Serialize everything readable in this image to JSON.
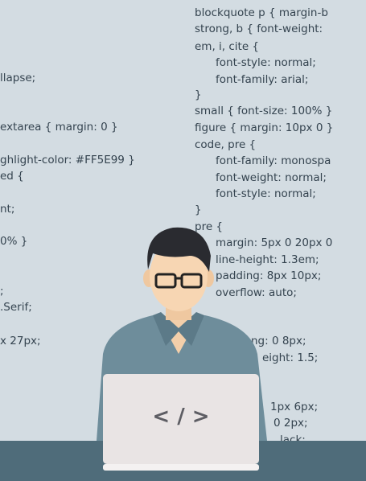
{
  "code_left": [
    "llapse;",
    "extarea { margin: 0 }",
    "ghlight-color: #FF5E99 }",
    "ed {",
    "nt;",
    "0% }",
    ";",
    ".Serif;",
    "x 27px;"
  ],
  "code_right": [
    "blockquote p { margin-b",
    "strong, b { font-weight:",
    "em, i, cite {",
    "font-style: normal;",
    "font-family: arial;",
    "}",
    "small { font-size: 100% }",
    "figure { margin: 10px 0 }",
    "code, pre {",
    "font-family: monospa",
    "font-weight: normal;",
    "font-style: normal;",
    "}",
    "pre {",
    "margin: 5px 0 20px 0",
    "line-height: 1.3em;",
    "padding: 8px 10px;",
    "overflow: auto;",
    "ng: 0 8px;",
    "eight: 1.5;",
    "1px 6px;",
    "0 2px;",
    "lack;"
  ],
  "laptop_logo": "< / >"
}
